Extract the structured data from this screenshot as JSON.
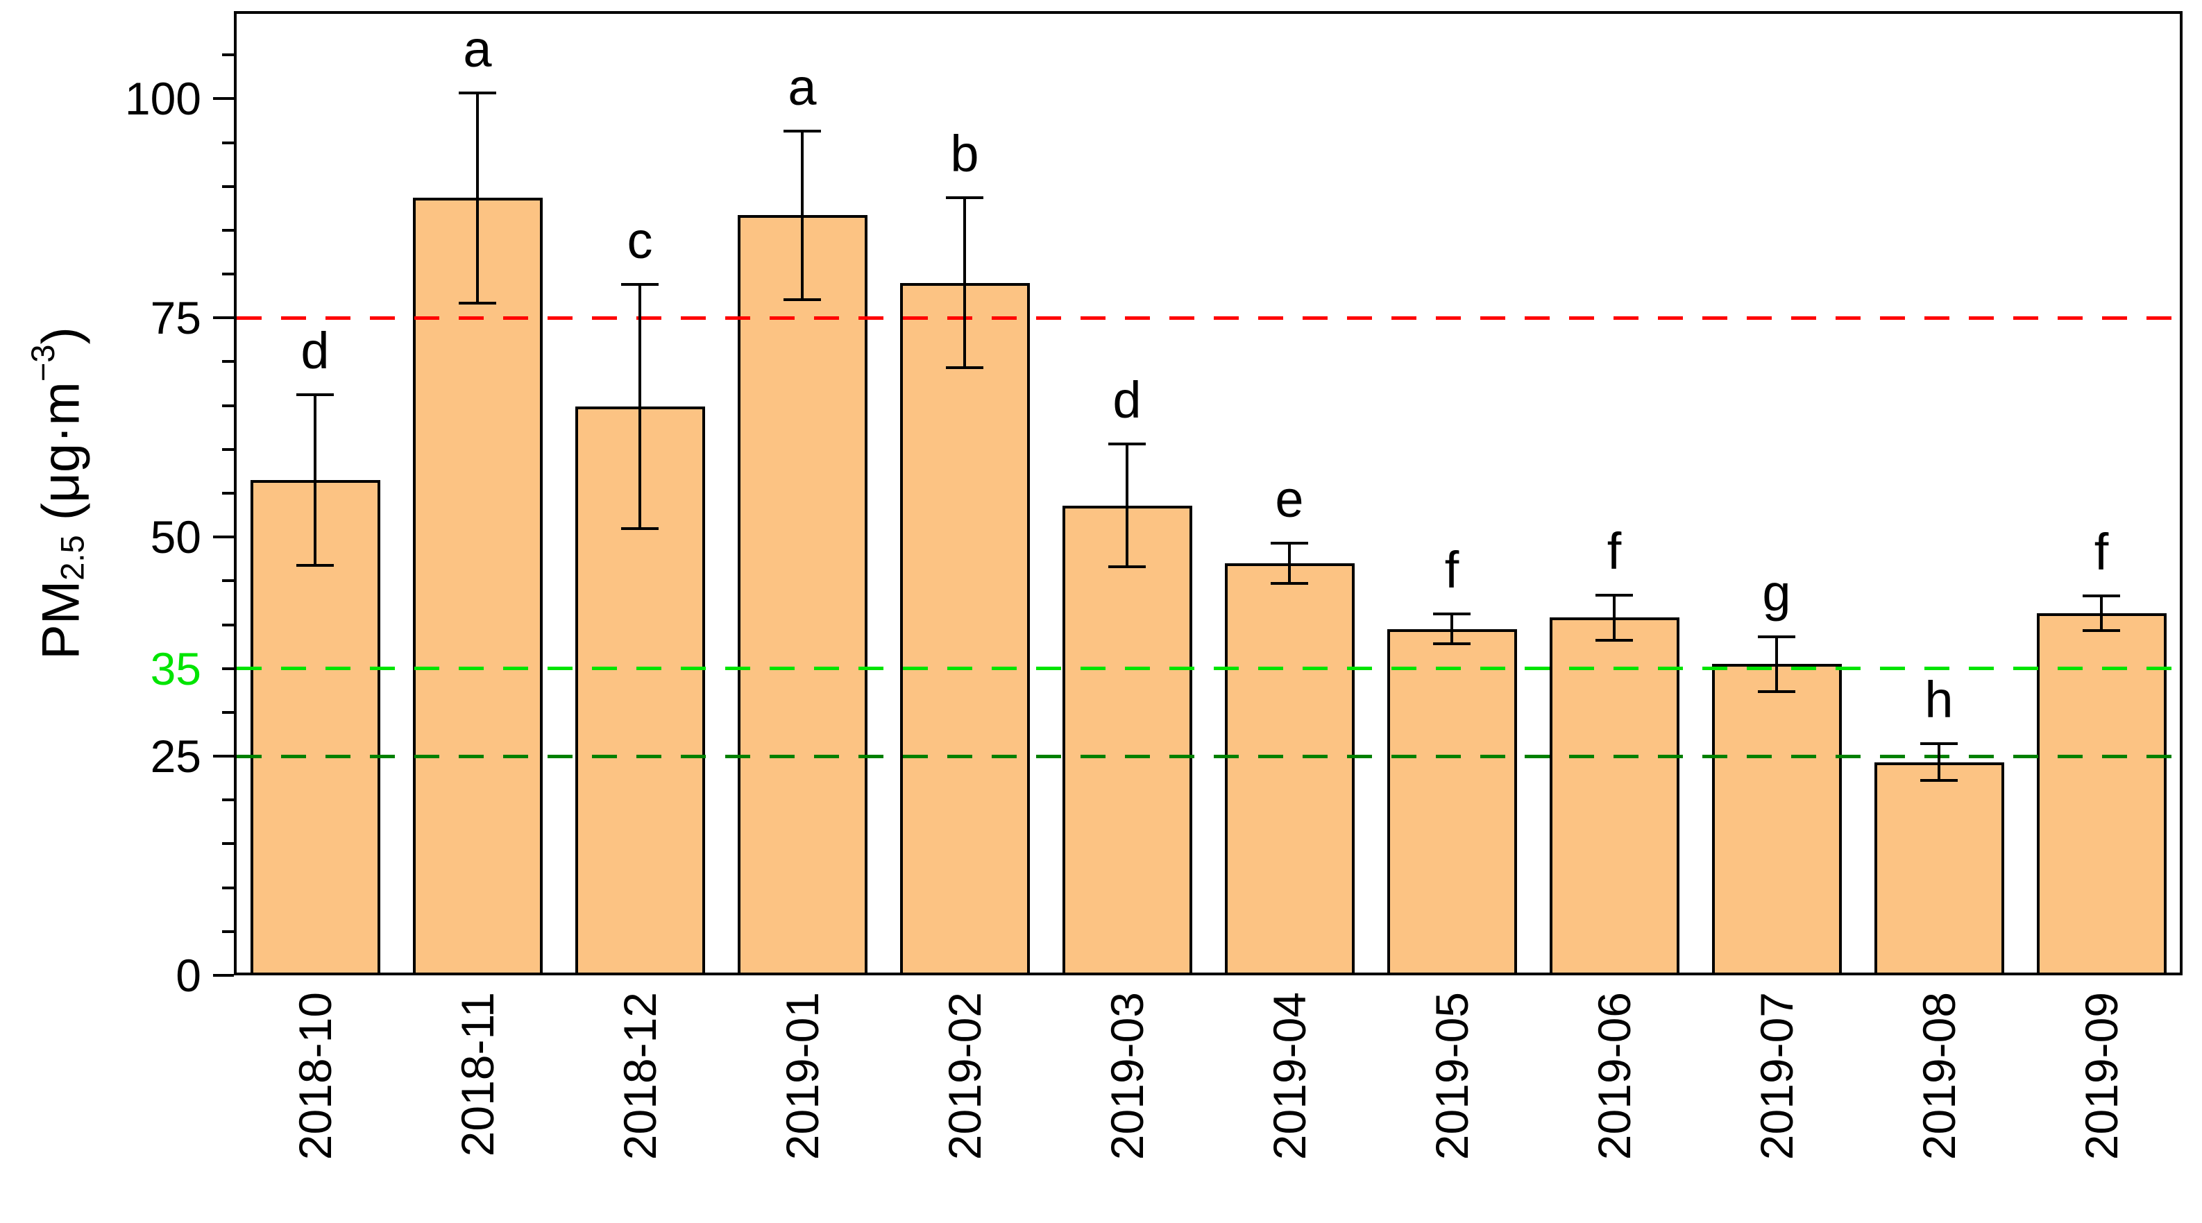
{
  "chart_data": {
    "type": "bar",
    "title": "",
    "categories": [
      "2018-10",
      "2018-11",
      "2018-12",
      "2019-01",
      "2019-02",
      "2019-03",
      "2019-04",
      "2019-05",
      "2019-06",
      "2019-07",
      "2019-08",
      "2019-09"
    ],
    "values": [
      56.5,
      88.7,
      64.9,
      86.7,
      79.0,
      53.6,
      47.0,
      39.5,
      40.8,
      35.5,
      24.3,
      41.3
    ],
    "errors": [
      9.7,
      12.0,
      13.9,
      9.6,
      9.7,
      7.0,
      2.3,
      1.7,
      2.6,
      3.1,
      2.1,
      2.0
    ],
    "sig_letters": [
      "d",
      "a",
      "c",
      "a",
      "b",
      "d",
      "e",
      "f",
      "f",
      "g",
      "h",
      "f"
    ],
    "ylabel": {
      "prefix": "PM",
      "sub": "2.5",
      "mid": " (μg·m",
      "sup": "−3",
      "suffix": ")"
    },
    "ylim": [
      0,
      110
    ],
    "ytick_major_values": [
      0,
      25,
      50,
      75,
      100
    ],
    "ytick_minor_step": 5,
    "special_ytick": {
      "value": 35,
      "label": "35",
      "color": "#00E400"
    },
    "ref_lines": [
      {
        "value": 75,
        "color": "#FF0000",
        "style": "dashed"
      },
      {
        "value": 35,
        "color": "#00E400",
        "style": "dashed"
      },
      {
        "value": 25,
        "color": "#008000",
        "style": "dashed"
      }
    ],
    "bar_fill": "#FCC383",
    "bar_stroke": "#000000",
    "xlabel": "",
    "legend_position": "none",
    "grid": "off"
  }
}
